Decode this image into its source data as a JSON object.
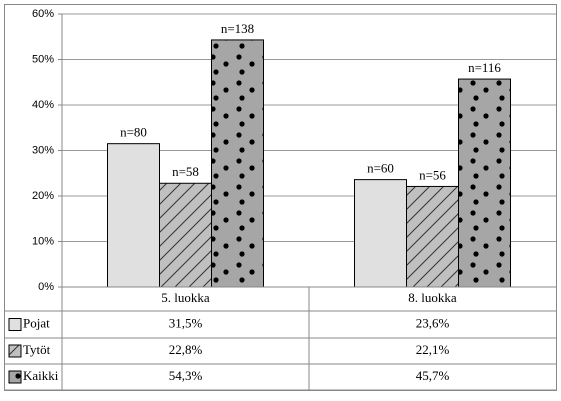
{
  "chart_data": {
    "type": "bar",
    "categories": [
      "5. luokka",
      "8. luokka"
    ],
    "series": [
      {
        "name": "Pojat",
        "color": "#e0e0e0",
        "pattern": "solid",
        "values": [
          31.5,
          23.6
        ],
        "value_labels": [
          "31,5%",
          "23,6%"
        ],
        "labels": [
          "n=80",
          "n=60"
        ]
      },
      {
        "name": "Tytöt",
        "color": "#c0c0c0",
        "pattern": "hatch",
        "values": [
          22.8,
          22.1
        ],
        "value_labels": [
          "22,8%",
          "22,1%"
        ],
        "labels": [
          "n=58",
          "n=56"
        ]
      },
      {
        "name": "Kaikki",
        "color": "#a6a6a6",
        "pattern": "dots",
        "values": [
          54.3,
          45.7
        ],
        "value_labels": [
          "54,3%",
          "45,7%"
        ],
        "labels": [
          "n=138",
          "n=116"
        ]
      }
    ],
    "ylim": [
      0,
      60
    ],
    "yticks": [
      {
        "value": 0,
        "label": "0%"
      },
      {
        "value": 10,
        "label": "10%"
      },
      {
        "value": 20,
        "label": "20%"
      },
      {
        "value": 30,
        "label": "30%"
      },
      {
        "value": 40,
        "label": "40%"
      },
      {
        "value": 50,
        "label": "50%"
      },
      {
        "value": 60,
        "label": "60%"
      }
    ],
    "grid": true
  }
}
